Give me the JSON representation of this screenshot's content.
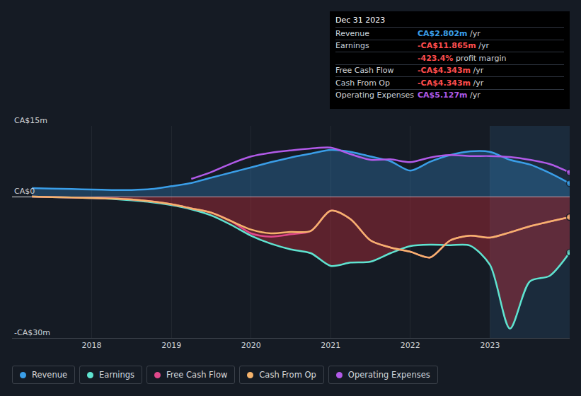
{
  "chart_data": {
    "type": "line",
    "x": [
      2017.25,
      2017.5,
      2017.75,
      2018,
      2018.25,
      2018.5,
      2018.75,
      2019,
      2019.25,
      2019.5,
      2019.75,
      2020,
      2020.25,
      2020.5,
      2020.75,
      2021,
      2021.25,
      2021.5,
      2021.75,
      2022,
      2022.25,
      2022.5,
      2022.75,
      2023,
      2023.25,
      2023.5,
      2023.75,
      2024
    ],
    "xlim": [
      2017,
      2024
    ],
    "xticks": [
      2018,
      2019,
      2020,
      2021,
      2022,
      2023
    ],
    "ylim": [
      -30,
      15
    ],
    "yticks": [
      {
        "value": 15,
        "label": "CA$15m"
      },
      {
        "value": 0,
        "label": "CA$0"
      },
      {
        "value": -30,
        "label": "-CA$30m"
      }
    ],
    "grid": true,
    "series": [
      {
        "name": "Revenue",
        "color": "#3a9ee8",
        "type": "area",
        "values": [
          1.8,
          1.7,
          1.6,
          1.5,
          1.4,
          1.4,
          1.6,
          2.2,
          2.9,
          4.0,
          5.1,
          6.2,
          7.3,
          8.3,
          9.1,
          9.9,
          9.5,
          8.5,
          7.5,
          5.5,
          7.4,
          8.8,
          9.6,
          9.5,
          7.8,
          6.8,
          5.0,
          2.802
        ]
      },
      {
        "name": "Earnings",
        "color": "#5fe3d0",
        "type": "area",
        "values": [
          0,
          -0.1,
          -0.2,
          -0.3,
          -0.5,
          -0.8,
          -1.2,
          -1.8,
          -2.7,
          -4.0,
          -6.0,
          -8.3,
          -10.0,
          -11.2,
          -12.0,
          -14.7,
          -14.0,
          -13.8,
          -12.0,
          -10.5,
          -10.2,
          -10.3,
          -10.4,
          -14.5,
          -28.0,
          -18.0,
          -16.8,
          -11.865
        ]
      },
      {
        "name": "Free Cash Flow",
        "color": "#e0488b",
        "type": "line",
        "values": [
          0,
          -0.1,
          -0.2,
          -0.3,
          -0.4,
          -0.6,
          -1.0,
          -1.6,
          -2.5,
          -3.4,
          -5.2,
          -7.8,
          -8.5,
          -8.0,
          -7.3,
          -3.0,
          -4.8,
          -9.3,
          -10.8,
          -11.7,
          -12.9,
          -9.3,
          -8.3,
          -8.7,
          -7.6,
          -6.3,
          -5.3,
          -4.343
        ]
      },
      {
        "name": "Cash From Op",
        "color": "#f5b36c",
        "type": "line",
        "values": [
          0,
          -0.1,
          -0.2,
          -0.3,
          -0.4,
          -0.6,
          -1.0,
          -1.6,
          -2.5,
          -3.4,
          -5.2,
          -7.0,
          -7.8,
          -7.5,
          -7.3,
          -3.0,
          -4.8,
          -9.3,
          -10.8,
          -11.7,
          -12.9,
          -9.3,
          -8.3,
          -8.7,
          -7.6,
          -6.3,
          -5.3,
          -4.343
        ]
      },
      {
        "name": "Operating Expenses",
        "color": "#b15ae8",
        "type": "line",
        "values": [
          null,
          null,
          null,
          null,
          null,
          null,
          null,
          null,
          3.75,
          5.2,
          7.0,
          8.5,
          9.3,
          9.8,
          10.2,
          10.4,
          9.0,
          7.8,
          7.9,
          7.3,
          8.3,
          8.8,
          8.6,
          8.6,
          8.4,
          7.8,
          6.9,
          5.127
        ]
      }
    ]
  },
  "tooltip": {
    "date": "Dec 31 2023",
    "rows": [
      {
        "label": "Revenue",
        "value": "CA$2.802m",
        "unit": "/yr",
        "color": "#3a9ee8"
      },
      {
        "label": "Earnings",
        "value": "-CA$11.865m",
        "unit": "/yr",
        "color": "#ff4d4d"
      },
      {
        "value": "-423.4%",
        "unit": "profit margin",
        "color": "#ff4d4d"
      },
      {
        "label": "Free Cash Flow",
        "value": "-CA$4.343m",
        "unit": "/yr",
        "color": "#ff4d4d"
      },
      {
        "label": "Cash From Op",
        "value": "-CA$4.343m",
        "unit": "/yr",
        "color": "#ff4d4d"
      },
      {
        "label": "Operating Expenses",
        "value": "CA$5.127m",
        "unit": "/yr",
        "color": "#b15ae8"
      }
    ]
  }
}
